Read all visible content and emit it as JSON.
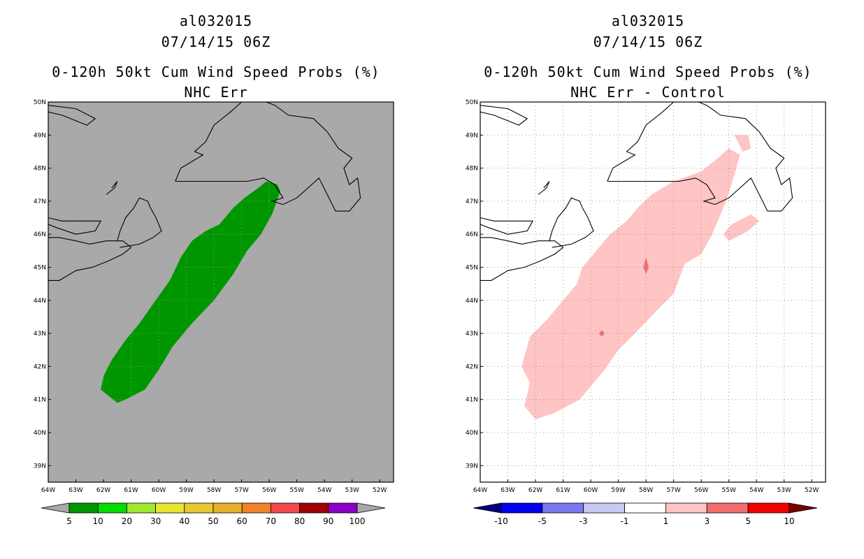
{
  "chart_data": [
    {
      "type": "map",
      "id": "left",
      "title_lines": [
        "al032015",
        "07/14/15 06Z",
        "0-120h 50kt Cum Wind Speed Probs (%)",
        "NHC Err"
      ],
      "lon_range": [
        -64,
        -51.5
      ],
      "lat_range": [
        38.5,
        50
      ],
      "lon_ticks": [
        "64W",
        "63W",
        "62W",
        "61W",
        "60W",
        "59W",
        "58W",
        "57W",
        "56W",
        "55W",
        "54W",
        "53W",
        "52W"
      ],
      "lat_ticks": [
        "39N",
        "40N",
        "41N",
        "42N",
        "43N",
        "44N",
        "45N",
        "46N",
        "47N",
        "48N",
        "49N",
        "50N"
      ],
      "background": "#a9a9a9",
      "field": {
        "value_class": "5-10",
        "color": "#009600",
        "polygon": [
          [
            -61.5,
            40.9
          ],
          [
            -61.2,
            41.0
          ],
          [
            -60.5,
            41.3
          ],
          [
            -60.0,
            41.9
          ],
          [
            -59.5,
            42.6
          ],
          [
            -58.8,
            43.3
          ],
          [
            -58.0,
            44.0
          ],
          [
            -57.3,
            44.8
          ],
          [
            -56.8,
            45.5
          ],
          [
            -56.3,
            46.0
          ],
          [
            -55.9,
            46.6
          ],
          [
            -55.6,
            47.3
          ],
          [
            -55.7,
            47.5
          ],
          [
            -56.1,
            47.6
          ],
          [
            -56.4,
            47.4
          ],
          [
            -56.9,
            47.1
          ],
          [
            -57.3,
            46.8
          ],
          [
            -57.8,
            46.3
          ],
          [
            -58.3,
            46.1
          ],
          [
            -58.8,
            45.8
          ],
          [
            -59.2,
            45.3
          ],
          [
            -59.6,
            44.6
          ],
          [
            -60.2,
            43.9
          ],
          [
            -60.7,
            43.3
          ],
          [
            -61.2,
            42.8
          ],
          [
            -61.7,
            42.2
          ],
          [
            -62.0,
            41.7
          ],
          [
            -62.1,
            41.3
          ]
        ]
      },
      "colorbar": {
        "labels": [
          "5",
          "10",
          "20",
          "30",
          "40",
          "50",
          "60",
          "70",
          "80",
          "90",
          "100"
        ],
        "colors": [
          "#009600",
          "#00dc00",
          "#a0e632",
          "#e6e632",
          "#e6c832",
          "#e6af2d",
          "#f08228",
          "#f04a4a",
          "#a00000",
          "#8c00c8"
        ],
        "end_colors": [
          "#a9a9a9",
          "#a9a9a9"
        ]
      }
    },
    {
      "type": "map",
      "id": "right",
      "title_lines": [
        "al032015",
        "07/14/15 06Z",
        "0-120h 50kt Cum Wind Speed Probs (%)",
        "NHC Err - Control"
      ],
      "lon_range": [
        -64,
        -51.5
      ],
      "lat_range": [
        38.5,
        50
      ],
      "lon_ticks": [
        "64W",
        "63W",
        "62W",
        "61W",
        "60W",
        "59W",
        "58W",
        "57W",
        "56W",
        "55W",
        "54W",
        "53W",
        "52W"
      ],
      "lat_ticks": [
        "39N",
        "40N",
        "41N",
        "42N",
        "43N",
        "44N",
        "45N",
        "46N",
        "47N",
        "48N",
        "49N",
        "50N"
      ],
      "background": "#ffffff",
      "fields": [
        {
          "value_class": "1-3",
          "color": "#ffc4c4",
          "polygon": [
            [
              -62.0,
              40.4
            ],
            [
              -61.3,
              40.6
            ],
            [
              -60.4,
              41.0
            ],
            [
              -59.9,
              41.5
            ],
            [
              -59.5,
              41.9
            ],
            [
              -59.0,
              42.5
            ],
            [
              -58.4,
              43.0
            ],
            [
              -57.6,
              43.7
            ],
            [
              -57.0,
              44.2
            ],
            [
              -56.6,
              45.1
            ],
            [
              -56.0,
              45.4
            ],
            [
              -55.6,
              46.0
            ],
            [
              -55.1,
              47.0
            ],
            [
              -54.8,
              47.8
            ],
            [
              -54.6,
              48.4
            ],
            [
              -55.0,
              48.6
            ],
            [
              -55.4,
              48.3
            ],
            [
              -56.0,
              47.9
            ],
            [
              -57.0,
              47.6
            ],
            [
              -57.8,
              47.2
            ],
            [
              -58.3,
              46.8
            ],
            [
              -58.7,
              46.4
            ],
            [
              -59.3,
              46.0
            ],
            [
              -59.8,
              45.5
            ],
            [
              -60.3,
              45.0
            ],
            [
              -60.5,
              44.5
            ],
            [
              -61.1,
              43.9
            ],
            [
              -61.6,
              43.4
            ],
            [
              -62.2,
              42.9
            ],
            [
              -62.5,
              42.0
            ],
            [
              -62.2,
              41.5
            ],
            [
              -62.4,
              40.8
            ]
          ]
        },
        {
          "value_class": "1-3",
          "color": "#ffc4c4",
          "polygon": [
            [
              -55.0,
              45.8
            ],
            [
              -54.3,
              46.1
            ],
            [
              -53.9,
              46.4
            ],
            [
              -54.2,
              46.6
            ],
            [
              -54.9,
              46.3
            ],
            [
              -55.2,
              46.0
            ]
          ]
        },
        {
          "value_class": "1-3",
          "color": "#ffc4c4",
          "polygon": [
            [
              -54.8,
              49.0
            ],
            [
              -54.3,
              49.0
            ],
            [
              -54.2,
              48.6
            ],
            [
              -54.5,
              48.5
            ]
          ]
        },
        {
          "value_class": "3-5",
          "color": "#f06e6e",
          "polygon": [
            [
              -58.0,
              44.8
            ],
            [
              -57.9,
              45.0
            ],
            [
              -58.0,
              45.3
            ],
            [
              -58.1,
              45.0
            ]
          ]
        },
        {
          "value_class": "3-5",
          "color": "#f06e6e",
          "polygon": [
            [
              -59.6,
              42.9
            ],
            [
              -59.5,
              43.0
            ],
            [
              -59.6,
              43.1
            ],
            [
              -59.7,
              43.0
            ]
          ]
        }
      ],
      "colorbar": {
        "labels": [
          "-10",
          "-5",
          "-3",
          "-1",
          "1",
          "3",
          "5",
          "10"
        ],
        "colors": [
          "#0000f0",
          "#7878f0",
          "#c8c8f0",
          "#ffffff",
          "#ffc4c4",
          "#f06e6e",
          "#f00000"
        ],
        "end_colors": [
          "#000080",
          "#780000"
        ]
      }
    }
  ]
}
